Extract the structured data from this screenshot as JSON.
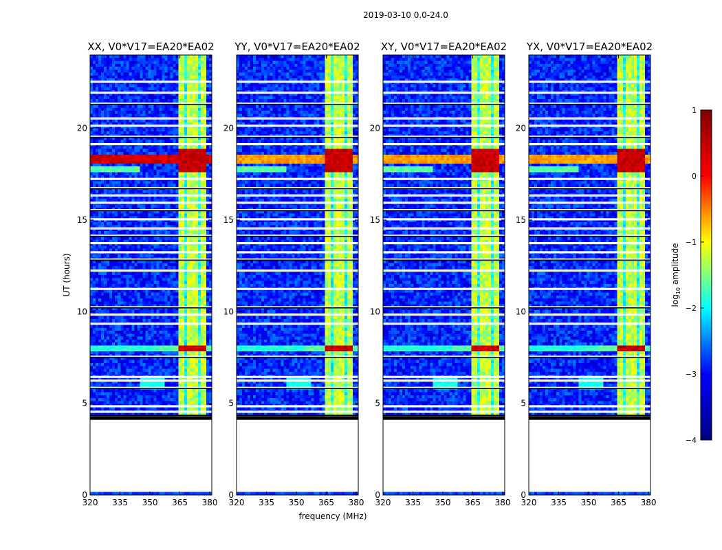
{
  "figure": {
    "suptitle": "2019-03-10 0.0-24.0",
    "xlabel": "frequency (MHz)",
    "ylabel": "UT (hours)"
  },
  "colorbar": {
    "label_prefix": "log",
    "label_sub": "10",
    "label_suffix": " amplitude",
    "range": [
      -4,
      1
    ],
    "ticks": [
      "1",
      "0",
      "−1",
      "−2",
      "−3",
      "−4"
    ],
    "colormap": "jet",
    "stops": [
      "#00007f",
      "#0000ff",
      "#00ffff",
      "#ffff00",
      "#ff0000",
      "#7f0000"
    ]
  },
  "chart_data": [
    {
      "type": "heatmap",
      "title": "XX, V0*V17=EA20*EA02",
      "xlim": [
        320,
        381
      ],
      "ylim": [
        0,
        24
      ],
      "xticks": [
        "320",
        "335",
        "350",
        "365",
        "380"
      ],
      "yticks": [
        "0",
        "5",
        "10",
        "15",
        "20"
      ]
    },
    {
      "type": "heatmap",
      "title": "YY, V0*V17=EA20*EA02",
      "xlim": [
        320,
        381
      ],
      "ylim": [
        0,
        24
      ],
      "xticks": [
        "320",
        "335",
        "350",
        "365",
        "380"
      ],
      "yticks": [
        "0",
        "5",
        "10",
        "15",
        "20"
      ]
    },
    {
      "type": "heatmap",
      "title": "XY, V0*V17=EA20*EA02",
      "xlim": [
        320,
        381
      ],
      "ylim": [
        0,
        24
      ],
      "xticks": [
        "320",
        "335",
        "350",
        "365",
        "380"
      ],
      "yticks": [
        "0",
        "5",
        "10",
        "15",
        "20"
      ]
    },
    {
      "type": "heatmap",
      "title": "YX, V0*V17=EA20*EA02",
      "xlim": [
        320,
        381
      ],
      "ylim": [
        0,
        24
      ],
      "xticks": [
        "320",
        "335",
        "350",
        "365",
        "380"
      ],
      "yticks": [
        "0",
        "5",
        "10",
        "15",
        "20"
      ]
    }
  ],
  "data_summary": {
    "data_start_ut": 4.1,
    "background_log_amp": -3.2,
    "rfi_band_mhz": [
      364,
      378
    ],
    "rfi_band_log_amp": -1.2,
    "strong_events": [
      {
        "ut_start": 7.8,
        "ut_end": 8.2,
        "log_amp": 0.4
      },
      {
        "ut_start": 17.6,
        "ut_end": 18.9,
        "log_amp": 0.6
      }
    ],
    "flagged_gap_hours": [
      4.3,
      4.6,
      4.9,
      5.9,
      6.3,
      6.5,
      7.6,
      9.4,
      9.9,
      10.3,
      11.3,
      12.3,
      12.9,
      13.3,
      13.8,
      14.2,
      14.6,
      15.1,
      15.6,
      16.0,
      16.4,
      16.8,
      17.3,
      19.2,
      19.6,
      20.2,
      20.6,
      21.4,
      22.0,
      22.6
    ]
  }
}
